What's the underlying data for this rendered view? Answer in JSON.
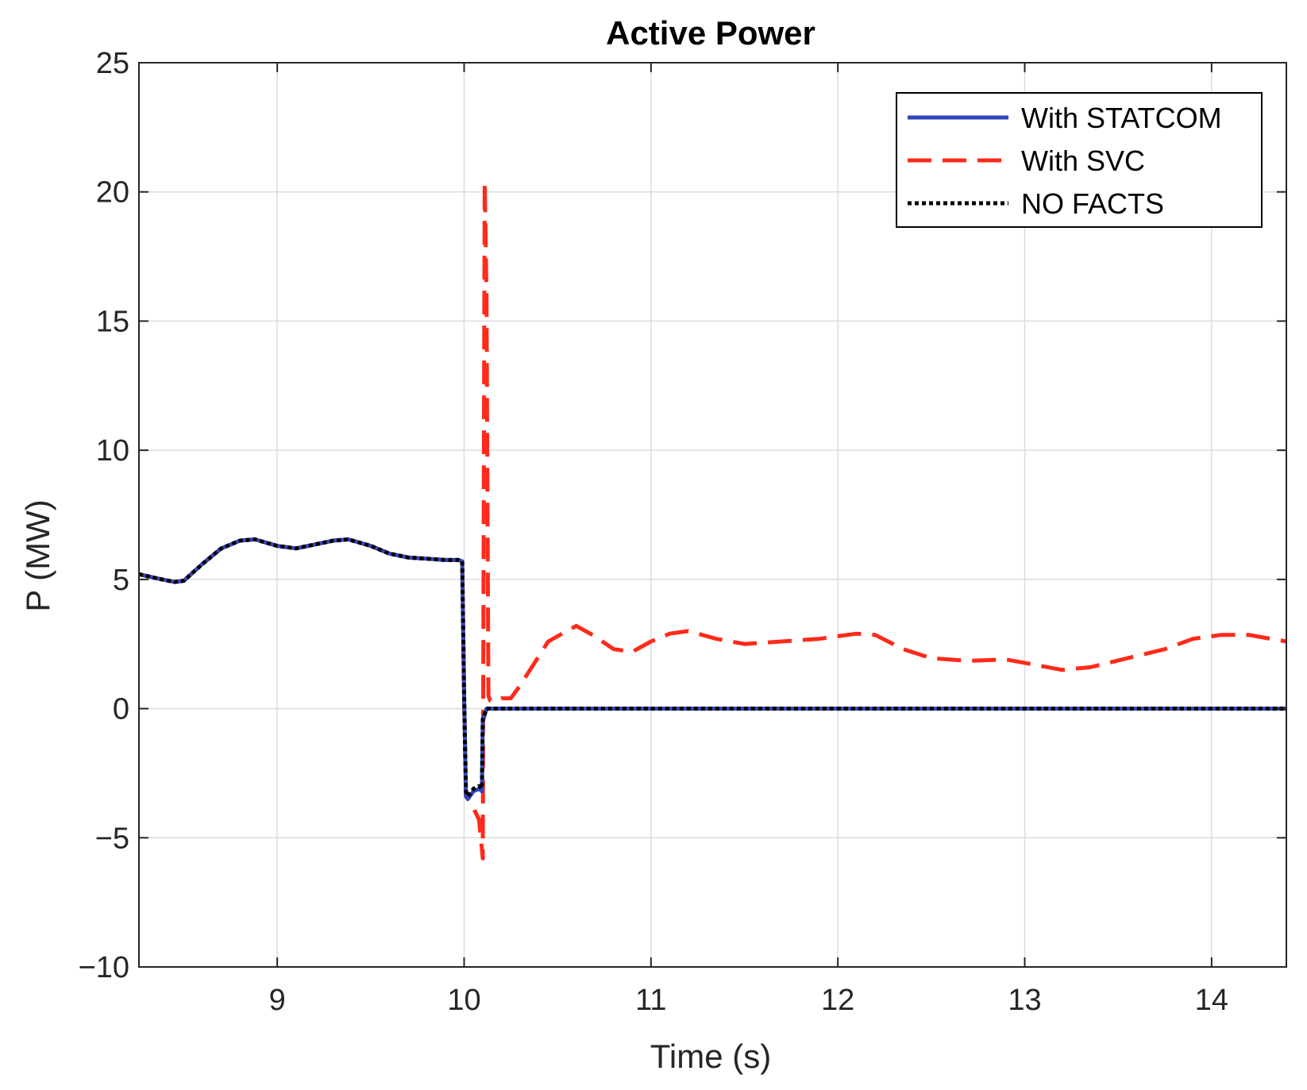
{
  "chart_data": {
    "type": "line",
    "title": "Active Power",
    "xlabel": "Time (s)",
    "ylabel": "P (MW)",
    "xlim": [
      8.26,
      14.4
    ],
    "ylim": [
      -10,
      25
    ],
    "xticks": [
      9,
      10,
      11,
      12,
      13,
      14
    ],
    "xtick_labels": [
      "9",
      "10",
      "11",
      "12",
      "13",
      "14"
    ],
    "yticks": [
      -10,
      -5,
      0,
      5,
      10,
      15,
      20,
      25
    ],
    "ytick_labels": [
      "−10",
      "−5",
      "0",
      "5",
      "10",
      "15",
      "20",
      "25"
    ],
    "grid": true,
    "legend_position": "top-right",
    "colors": {
      "statcom": "#3344bb",
      "svc": "#ff2a1a",
      "nofacts": "#000000",
      "grid": "#dcdcdc",
      "axis": "#262626"
    },
    "series": [
      {
        "name": "With STATCOM",
        "style": "solid",
        "x": [
          8.26,
          8.35,
          8.45,
          8.5,
          8.6,
          8.7,
          8.8,
          8.88,
          9.0,
          9.1,
          9.2,
          9.3,
          9.38,
          9.5,
          9.6,
          9.7,
          9.8,
          9.9,
          9.97,
          9.99,
          10.0,
          10.01,
          10.02,
          10.05,
          10.08,
          10.095,
          10.1,
          10.12,
          10.2,
          10.5,
          11.0,
          12.0,
          13.0,
          14.0,
          14.4
        ],
        "values": [
          5.2,
          5.05,
          4.9,
          4.95,
          5.6,
          6.2,
          6.5,
          6.55,
          6.3,
          6.2,
          6.35,
          6.5,
          6.55,
          6.3,
          6.0,
          5.85,
          5.8,
          5.75,
          5.75,
          5.7,
          0.5,
          -3.4,
          -3.5,
          -3.2,
          -3.1,
          -3.2,
          -0.5,
          0.0,
          0.0,
          0.0,
          0.0,
          0.0,
          0.0,
          0.0,
          0.0
        ]
      },
      {
        "name": "With SVC",
        "style": "dashed",
        "x": [
          8.26,
          8.35,
          8.45,
          8.5,
          8.6,
          8.7,
          8.8,
          8.88,
          9.0,
          9.1,
          9.2,
          9.3,
          9.38,
          9.5,
          9.6,
          9.7,
          9.8,
          9.9,
          9.97,
          9.99,
          10.0,
          10.01,
          10.03,
          10.06,
          10.08,
          10.1,
          10.105,
          10.11,
          10.12,
          10.13,
          10.14,
          10.16,
          10.2,
          10.25,
          10.3,
          10.45,
          10.6,
          10.7,
          10.8,
          10.9,
          11.0,
          11.1,
          11.2,
          11.35,
          11.5,
          11.7,
          11.9,
          12.1,
          12.2,
          12.35,
          12.5,
          12.7,
          12.9,
          13.05,
          13.2,
          13.35,
          13.55,
          13.75,
          13.9,
          14.05,
          14.2,
          14.4
        ],
        "values": [
          5.2,
          5.05,
          4.9,
          4.95,
          5.6,
          6.2,
          6.5,
          6.55,
          6.3,
          6.2,
          6.35,
          6.5,
          6.55,
          6.3,
          6.0,
          5.85,
          5.8,
          5.75,
          5.75,
          5.7,
          0.5,
          -3.4,
          -3.6,
          -4.0,
          -4.3,
          -5.8,
          8.0,
          20.4,
          16.0,
          0.5,
          0.3,
          0.3,
          0.4,
          0.4,
          0.9,
          2.6,
          3.2,
          2.8,
          2.3,
          2.2,
          2.6,
          2.9,
          3.0,
          2.7,
          2.5,
          2.6,
          2.7,
          2.9,
          2.85,
          2.3,
          1.95,
          1.85,
          1.9,
          1.7,
          1.5,
          1.6,
          1.95,
          2.3,
          2.7,
          2.85,
          2.85,
          2.6
        ]
      },
      {
        "name": "NO FACTS",
        "style": "dotted",
        "x": [
          8.26,
          8.35,
          8.45,
          8.5,
          8.6,
          8.7,
          8.8,
          8.88,
          9.0,
          9.1,
          9.2,
          9.3,
          9.38,
          9.5,
          9.6,
          9.7,
          9.8,
          9.9,
          9.97,
          9.99,
          10.0,
          10.01,
          10.02,
          10.05,
          10.08,
          10.095,
          10.1,
          10.12,
          10.2,
          10.5,
          11.0,
          12.0,
          13.0,
          14.0,
          14.4
        ],
        "values": [
          5.2,
          5.05,
          4.9,
          4.95,
          5.6,
          6.2,
          6.5,
          6.55,
          6.3,
          6.2,
          6.35,
          6.5,
          6.55,
          6.3,
          6.0,
          5.85,
          5.8,
          5.75,
          5.75,
          5.7,
          0.5,
          -3.2,
          -3.4,
          -3.1,
          -3.0,
          -3.1,
          -0.4,
          0.0,
          0.0,
          0.0,
          0.0,
          0.0,
          0.0,
          0.0,
          0.0
        ]
      }
    ]
  }
}
